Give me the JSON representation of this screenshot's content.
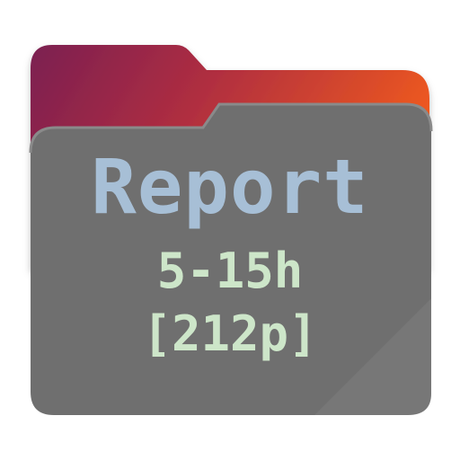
{
  "icon": {
    "name": "folder-icon",
    "colors": {
      "tab_gradient_start": "#7b1f52",
      "tab_gradient_mid": "#b02e40",
      "tab_gradient_end": "#f05a1e",
      "front_fill": "#6f6f6f",
      "front_edge": "#8a8a8a",
      "title_color": "#a7bfd6",
      "detail_color": "#cde6c9"
    }
  },
  "text": {
    "title": "Report",
    "hours": "5-15h",
    "pages": "[212p]"
  }
}
